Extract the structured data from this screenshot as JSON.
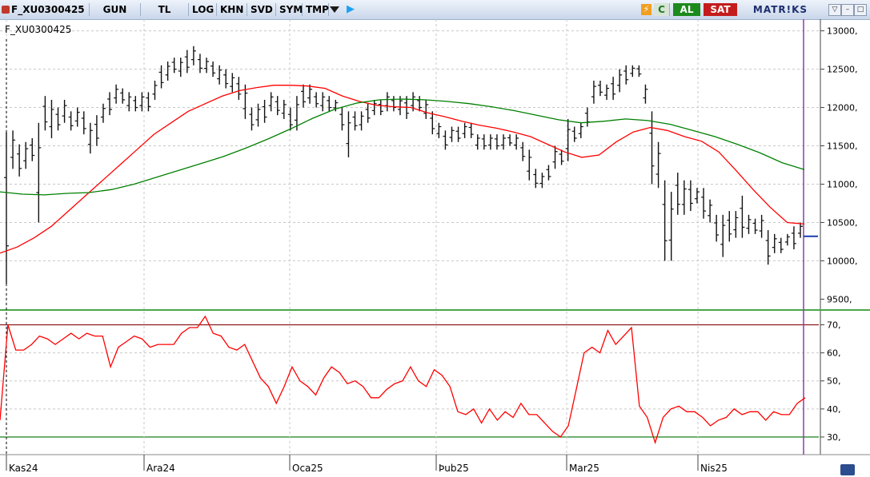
{
  "toolbar": {
    "symbol": "F_XU0300425",
    "period": "GUN",
    "currency": "TL",
    "log_label": "LOG",
    "khn_label": "KHN",
    "svd_label": "SVD",
    "sym_label": "SYM",
    "tmp_label": "TMP",
    "c_label": "C",
    "buy_label": "AL",
    "sell_label": "SAT",
    "brand": "MATR!KS"
  },
  "chart_data": [
    {
      "type": "line",
      "title": "F_XU0300425",
      "subtype": "ohlc-bars",
      "ylim": [
        9400,
        13100
      ],
      "yticks": [
        9500,
        10000,
        10500,
        11000,
        11500,
        12000,
        12500,
        13000
      ],
      "ytick_labels": [
        "9500,",
        "10000,",
        "10500,",
        "11000,",
        "11500,",
        "12000,",
        "12500,",
        "13000,"
      ],
      "xticks": [
        "Kas24",
        "Ara24",
        "Oca25",
        "Þub25",
        "Mar25",
        "Nis25"
      ],
      "grid": true,
      "price_hl": [
        [
          9700,
          11680
        ],
        [
          11200,
          11700
        ],
        [
          11100,
          11520
        ],
        [
          11200,
          11550
        ],
        [
          11300,
          11600
        ],
        [
          10500,
          11800
        ],
        [
          11700,
          12150
        ],
        [
          11600,
          12100
        ],
        [
          11700,
          12000
        ],
        [
          11800,
          12100
        ],
        [
          11700,
          11950
        ],
        [
          11750,
          12000
        ],
        [
          11650,
          11950
        ],
        [
          11400,
          11800
        ],
        [
          11500,
          11900
        ],
        [
          11800,
          12050
        ],
        [
          11900,
          12200
        ],
        [
          12050,
          12300
        ],
        [
          12050,
          12250
        ],
        [
          11950,
          12200
        ],
        [
          11950,
          12150
        ],
        [
          11950,
          12200
        ],
        [
          11950,
          12200
        ],
        [
          12100,
          12350
        ],
        [
          12250,
          12550
        ],
        [
          12350,
          12600
        ],
        [
          12450,
          12650
        ],
        [
          12400,
          12650
        ],
        [
          12450,
          12750
        ],
        [
          12550,
          12800
        ],
        [
          12450,
          12700
        ],
        [
          12450,
          12650
        ],
        [
          12400,
          12600
        ],
        [
          12300,
          12550
        ],
        [
          12250,
          12500
        ],
        [
          12200,
          12450
        ],
        [
          12100,
          12400
        ],
        [
          11850,
          12300
        ],
        [
          11700,
          12000
        ],
        [
          11750,
          12050
        ],
        [
          11800,
          12100
        ],
        [
          11950,
          12200
        ],
        [
          11900,
          12150
        ],
        [
          11850,
          12100
        ],
        [
          11700,
          12000
        ],
        [
          11700,
          12150
        ],
        [
          12000,
          12300
        ],
        [
          12050,
          12300
        ],
        [
          12000,
          12200
        ],
        [
          11950,
          12200
        ],
        [
          11950,
          12150
        ],
        [
          11950,
          12100
        ],
        [
          11700,
          12000
        ],
        [
          11350,
          11950
        ],
        [
          11700,
          11950
        ],
        [
          11700,
          11950
        ],
        [
          11800,
          12050
        ],
        [
          11900,
          12100
        ],
        [
          11900,
          12100
        ],
        [
          11950,
          12200
        ],
        [
          11950,
          12150
        ],
        [
          11900,
          12150
        ],
        [
          11850,
          12150
        ],
        [
          11950,
          12200
        ],
        [
          11950,
          12150
        ],
        [
          11850,
          12100
        ],
        [
          11650,
          11950
        ],
        [
          11600,
          11800
        ],
        [
          11450,
          11700
        ],
        [
          11550,
          11750
        ],
        [
          11550,
          11750
        ],
        [
          11600,
          11800
        ],
        [
          11600,
          11800
        ],
        [
          11450,
          11650
        ],
        [
          11450,
          11650
        ],
        [
          11450,
          11650
        ],
        [
          11450,
          11650
        ],
        [
          11450,
          11650
        ],
        [
          11500,
          11650
        ],
        [
          11450,
          11650
        ],
        [
          11300,
          11550
        ],
        [
          11050,
          11450
        ],
        [
          10950,
          11200
        ],
        [
          10950,
          11150
        ],
        [
          11050,
          11250
        ],
        [
          11200,
          11500
        ],
        [
          11250,
          11450
        ],
        [
          11300,
          11850
        ],
        [
          11550,
          11750
        ],
        [
          11600,
          11800
        ],
        [
          11750,
          12000
        ],
        [
          12050,
          12350
        ],
        [
          12150,
          12350
        ],
        [
          12100,
          12300
        ],
        [
          12100,
          12400
        ],
        [
          12200,
          12500
        ],
        [
          12300,
          12550
        ],
        [
          12400,
          12550
        ],
        [
          12400,
          12550
        ],
        [
          12050,
          12300
        ],
        [
          11000,
          11950
        ],
        [
          10950,
          11550
        ],
        [
          10000,
          11050
        ],
        [
          10000,
          10900
        ],
        [
          10600,
          11150
        ],
        [
          10600,
          11050
        ],
        [
          10650,
          11050
        ],
        [
          10750,
          10950
        ],
        [
          10550,
          10950
        ],
        [
          10500,
          10800
        ],
        [
          10250,
          10600
        ],
        [
          10050,
          10600
        ],
        [
          10250,
          10650
        ],
        [
          10300,
          10650
        ],
        [
          10300,
          10850
        ],
        [
          10350,
          10600
        ],
        [
          10350,
          10550
        ],
        [
          10300,
          10600
        ],
        [
          9950,
          10400
        ],
        [
          10100,
          10350
        ],
        [
          10100,
          10300
        ],
        [
          10200,
          10350
        ],
        [
          10150,
          10450
        ],
        [
          10300,
          10500
        ]
      ],
      "series": [
        {
          "name": "",
          "color": "#ff0000",
          "values": [
            10100,
            10180,
            10300,
            10450,
            10650,
            10850,
            11050,
            11250,
            11450,
            11650,
            11800,
            11950,
            12050,
            12150,
            12220,
            12260,
            12290,
            12290,
            12280,
            12250,
            12150,
            12080,
            12030,
            12010,
            12000,
            11930,
            11880,
            11820,
            11770,
            11730,
            11680,
            11620,
            11520,
            11420,
            11350,
            11380,
            11550,
            11680,
            11740,
            11700,
            11620,
            11560,
            11420,
            11180,
            10930,
            10700,
            10500,
            10480
          ]
        },
        {
          "name": "",
          "color": "#008000",
          "values": [
            10900,
            10870,
            10860,
            10880,
            10890,
            10930,
            11000,
            11090,
            11180,
            11270,
            11360,
            11470,
            11590,
            11720,
            11860,
            11980,
            12060,
            12100,
            12110,
            12100,
            12080,
            12050,
            12010,
            11960,
            11900,
            11840,
            11800,
            11820,
            11850,
            11830,
            11780,
            11700,
            11620,
            11520,
            11410,
            11280,
            11190
          ]
        }
      ]
    },
    {
      "type": "line",
      "ylim": [
        24,
        73
      ],
      "yticks": [
        30,
        40,
        50,
        60,
        70
      ],
      "ytick_labels": [
        "30,",
        "40,",
        "50,",
        "60,",
        "70,"
      ],
      "hlines": [
        70,
        30
      ],
      "series": [
        {
          "name": "",
          "color": "#ff0000",
          "values": [
            36,
            70,
            61,
            61,
            63,
            66,
            65,
            63,
            65,
            67,
            65,
            67,
            66,
            66,
            55,
            62,
            64,
            66,
            65,
            62,
            63,
            63,
            63,
            67,
            69,
            69,
            73,
            67,
            66,
            62,
            61,
            63,
            57,
            51,
            48,
            42,
            48,
            55,
            50,
            48,
            45,
            51,
            55,
            53,
            49,
            50,
            48,
            44,
            44,
            47,
            49,
            50,
            55,
            50,
            48,
            54,
            52,
            48,
            39,
            38,
            40,
            35,
            40,
            36,
            39,
            37,
            42,
            38,
            38,
            35,
            32,
            30,
            34,
            47,
            60,
            62,
            60,
            68,
            63,
            66,
            69,
            41,
            37,
            28,
            37,
            40,
            41,
            39,
            39,
            37,
            34,
            36,
            37,
            40,
            38,
            39,
            39,
            36,
            39,
            38,
            38,
            42,
            44
          ]
        }
      ]
    }
  ]
}
